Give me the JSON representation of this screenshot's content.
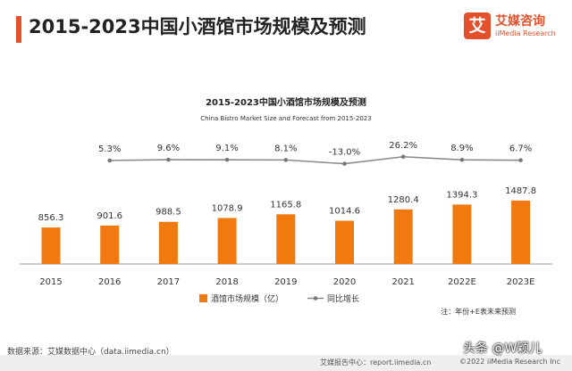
{
  "header": {
    "title": "2015-2023中国小酒馆市场规模及预测"
  },
  "logo": {
    "badge": "艾",
    "name_cn": "艾媒咨询",
    "name_en": "iiMedia Research"
  },
  "colors": {
    "accent": "#e4502b",
    "bar": "#f07a10",
    "line": "#8a8a8a"
  },
  "chart_data": {
    "type": "bar",
    "title": "2015-2023中国小酒馆市场规模及预测",
    "subtitle": "China Bistro Market Size and Forecast from 2015-2023",
    "categories": [
      "2015",
      "2016",
      "2017",
      "2018",
      "2019",
      "2020",
      "2021",
      "2022E",
      "2023E"
    ],
    "series": [
      {
        "name": "酒馆市场规模（亿）",
        "type": "bar",
        "values": [
          856.3,
          901.6,
          988.5,
          1078.9,
          1165.8,
          1014.6,
          1280.4,
          1394.3,
          1487.8
        ],
        "labels": [
          "856.3",
          "901.6",
          "988.5",
          "1078.9",
          "1165.8",
          "1014.6",
          "1280.4",
          "1394.3",
          "1487.8"
        ]
      },
      {
        "name": "同比增长",
        "type": "line",
        "values": [
          5.3,
          9.6,
          9.1,
          8.1,
          -13.0,
          26.2,
          8.9,
          6.7
        ],
        "x": [
          "2016",
          "2017",
          "2018",
          "2019",
          "2020",
          "2021",
          "2022E",
          "2023E"
        ],
        "labels": [
          "5.3%",
          "9.6%",
          "9.1%",
          "8.1%",
          "-13.0%",
          "26.2%",
          "8.9%",
          "6.7%"
        ]
      }
    ],
    "legend_position": "bottom",
    "note": "注：年份+E表未来预测",
    "grid": false
  },
  "footer": {
    "source": "数据来源：艾媒数据中心（data.iimedia.cn）",
    "report": "艾媒报告中心：report.iimedia.cn",
    "copyright": "©2022  iiMedia Research  Inc",
    "watermark": "头条 @W颖儿"
  }
}
